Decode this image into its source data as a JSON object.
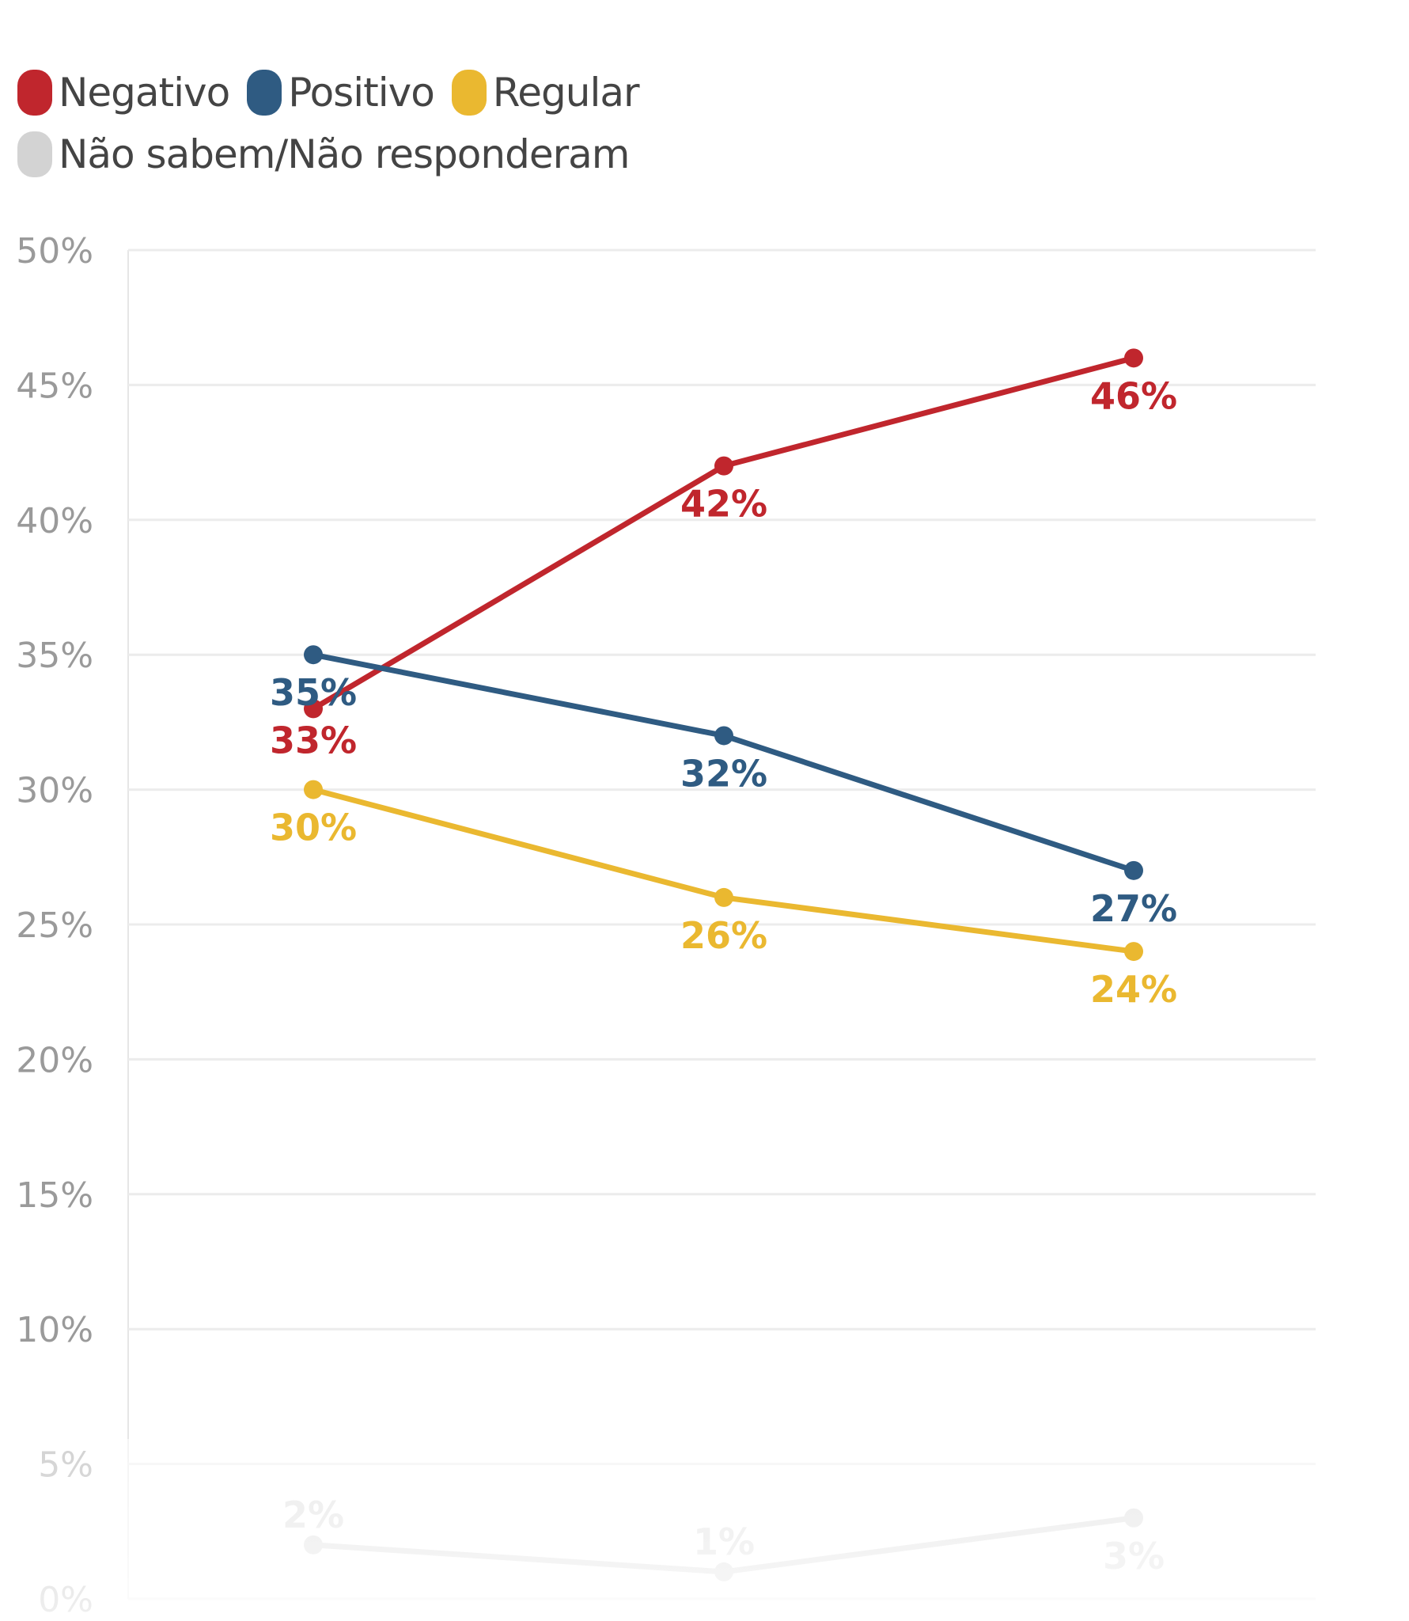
{
  "chart_data": {
    "type": "line",
    "title": "",
    "xlabel": "",
    "ylabel": "",
    "ylim": [
      0,
      50
    ],
    "yticks": [
      "0%",
      "5%",
      "10%",
      "15%",
      "20%",
      "25%",
      "30%",
      "35%",
      "40%",
      "45%",
      "50%"
    ],
    "grid": true,
    "legend_placement": "top-left",
    "x": [
      1,
      2,
      3
    ],
    "series": [
      {
        "name": "Negativo",
        "color": "#c0262d",
        "values": [
          33,
          42,
          46
        ],
        "labels": [
          "33%",
          "42%",
          "46%"
        ]
      },
      {
        "name": "Positivo",
        "color": "#2f5b82",
        "values": [
          35,
          32,
          27
        ],
        "labels": [
          "35%",
          "32%",
          "27%"
        ]
      },
      {
        "name": "Regular",
        "color": "#eab830",
        "values": [
          30,
          26,
          24
        ],
        "labels": [
          "30%",
          "26%",
          "24%"
        ]
      },
      {
        "name": "Não sabem/Não responderam",
        "color": "#d3d3d3",
        "values": [
          2,
          1,
          3
        ],
        "labels": [
          "2%",
          "1%",
          "3%"
        ]
      }
    ]
  }
}
